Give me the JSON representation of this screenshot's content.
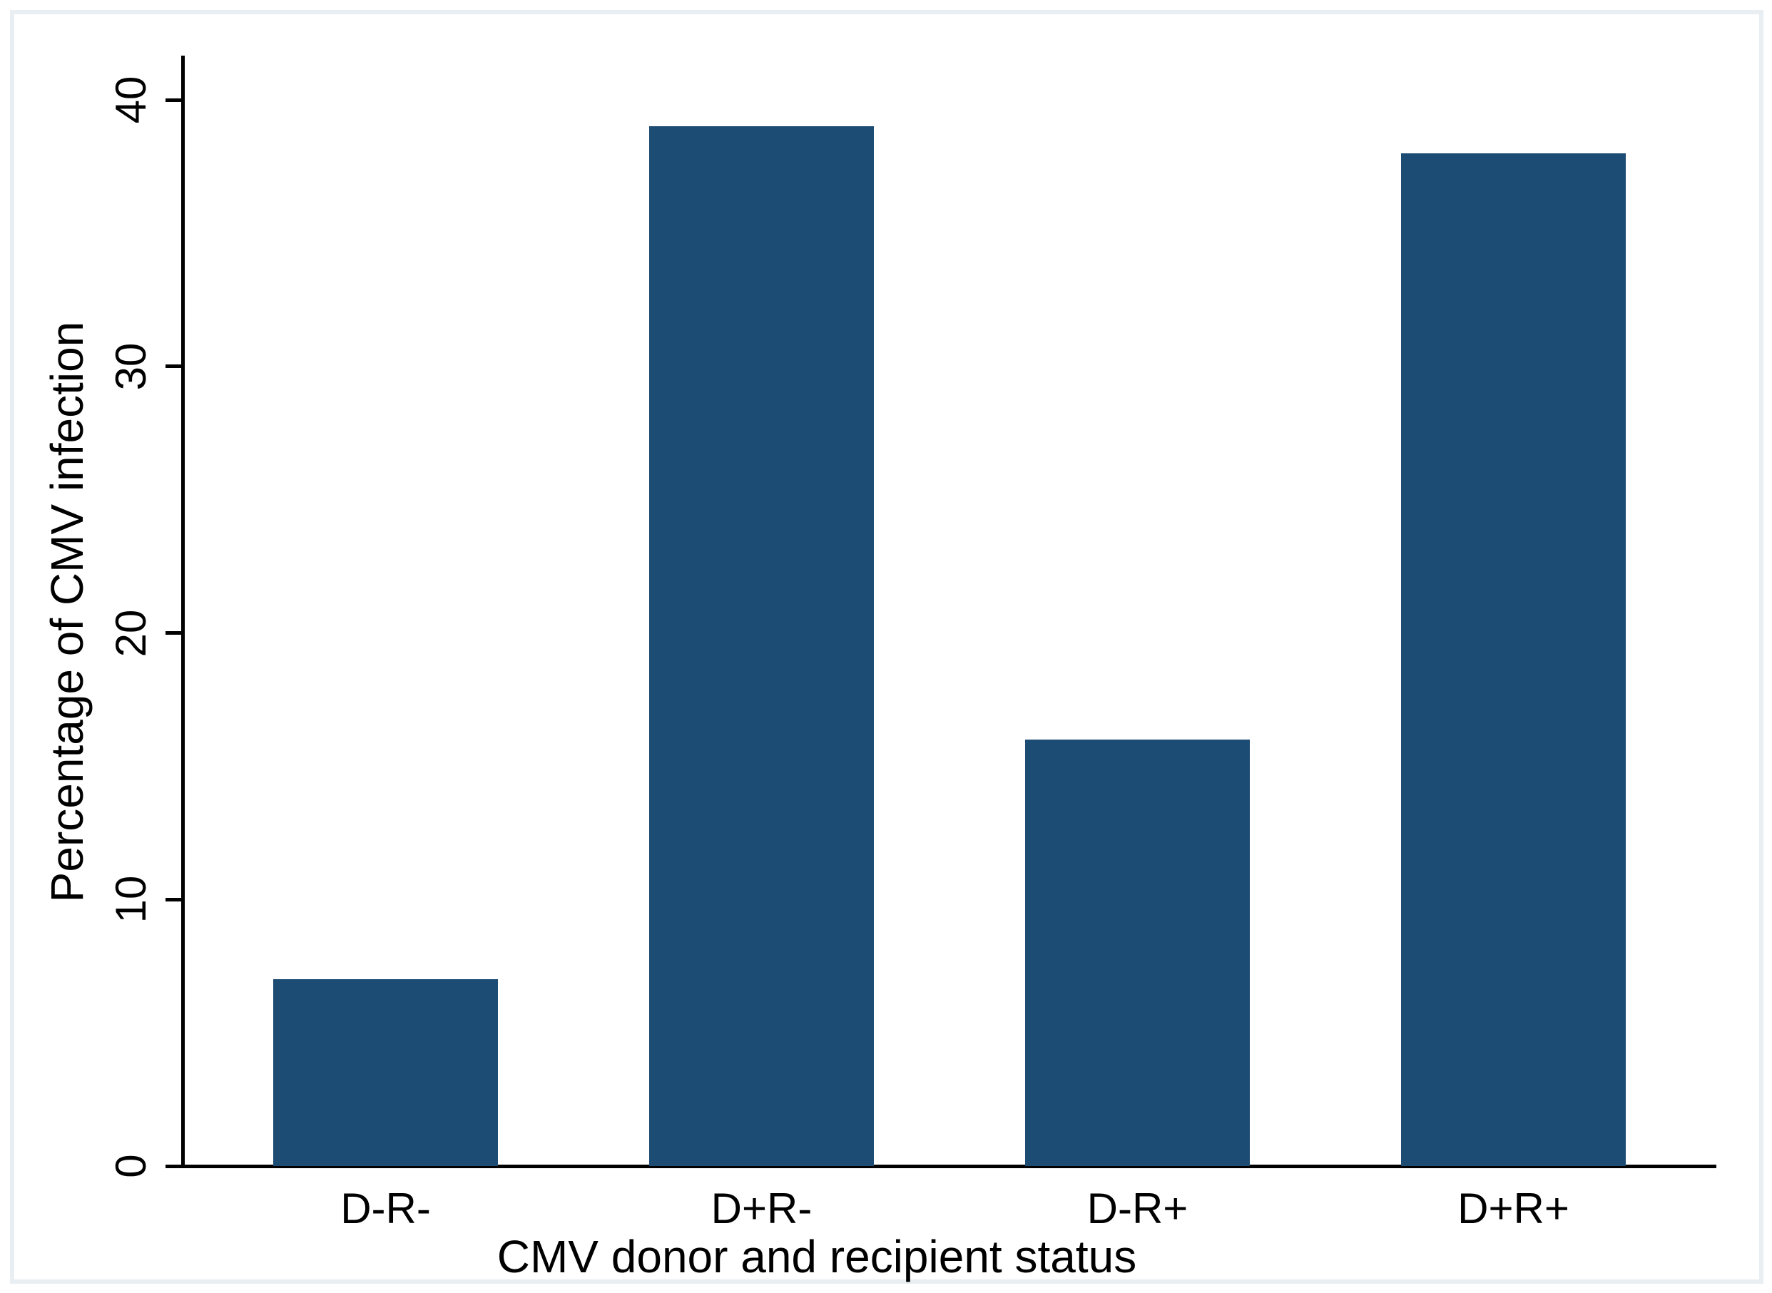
{
  "chart_data": {
    "type": "bar",
    "categories": [
      "D-R-",
      "D+R-",
      "D-R+",
      "D+R+"
    ],
    "values": [
      7,
      39,
      16,
      38
    ],
    "title": "",
    "xlabel": "CMV donor and recipient status",
    "ylabel": "Percentage of CMV infection",
    "y_ticks": [
      0,
      10,
      20,
      30,
      40
    ],
    "ylim": [
      0,
      41.6
    ],
    "grid": false,
    "legend": false,
    "bar_color": "#1c4b73"
  },
  "colors": {
    "bar": "#1c4b73",
    "frame": "#e8eef2",
    "axis": "#000000",
    "background": "#ffffff"
  }
}
